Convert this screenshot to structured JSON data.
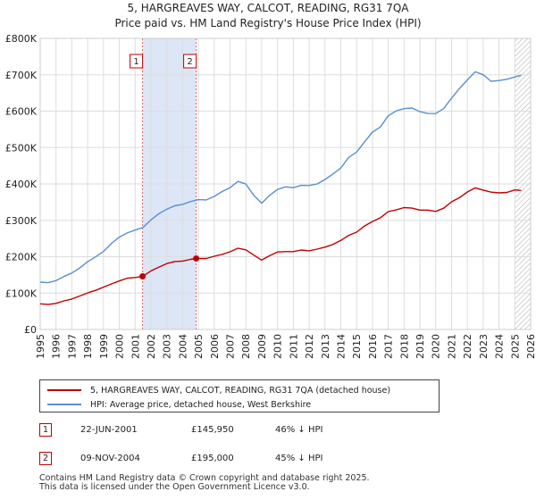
{
  "header": {
    "title_line1": "5, HARGREAVES WAY, CALCOT, READING, RG31 7QA",
    "title_line2": "Price paid vs. HM Land Registry's House Price Index (HPI)"
  },
  "legend": {
    "property_label": "5, HARGREAVES WAY, CALCOT, READING, RG31 7QA (detached house)",
    "hpi_label": "HPI: Average price, detached house, West Berkshire"
  },
  "sales": [
    {
      "num": "1",
      "date": "22-JUN-2001",
      "price": "£145,950",
      "hpi_delta": "46% ↓ HPI"
    },
    {
      "num": "2",
      "date": "09-NOV-2004",
      "price": "£195,000",
      "hpi_delta": "45% ↓ HPI"
    }
  ],
  "footer": {
    "line1": "Contains HM Land Registry data © Crown copyright and database right 2025.",
    "line2": "This data is licensed under the Open Government Licence v3.0."
  },
  "colors": {
    "property": "#c00000",
    "hpi": "#5b8fd0",
    "shade": "#dde6f7",
    "grid": "#dddddd"
  },
  "chart_data": {
    "type": "line",
    "title": "Price paid vs. HM Land Registry's House Price Index (HPI)",
    "xlabel": "",
    "ylabel": "",
    "xlim": [
      1995,
      2026
    ],
    "ylim": [
      0,
      800000
    ],
    "y_ticks": [
      0,
      100000,
      200000,
      300000,
      400000,
      500000,
      600000,
      700000,
      800000
    ],
    "y_tick_labels": [
      "£0",
      "£100K",
      "£200K",
      "£300K",
      "£400K",
      "£500K",
      "£600K",
      "£700K",
      "£800K"
    ],
    "x_ticks": [
      1995,
      1996,
      1997,
      1998,
      1999,
      2000,
      2001,
      2002,
      2003,
      2004,
      2005,
      2006,
      2007,
      2008,
      2009,
      2010,
      2011,
      2012,
      2013,
      2014,
      2015,
      2016,
      2017,
      2018,
      2019,
      2020,
      2021,
      2022,
      2023,
      2024,
      2025,
      2026
    ],
    "shaded_region": [
      2001.47,
      2004.86
    ],
    "hatched_from": 2025.0,
    "grid": true,
    "series": [
      {
        "name": "HPI: Average price, detached house, West Berkshire",
        "x": [
          1995.0,
          1995.5,
          1996.0,
          1996.5,
          1997.0,
          1997.5,
          1998.0,
          1998.5,
          1999.0,
          1999.5,
          2000.0,
          2000.5,
          2001.0,
          2001.5,
          2002.0,
          2002.5,
          2003.0,
          2003.5,
          2004.0,
          2004.5,
          2005.0,
          2005.5,
          2006.0,
          2006.5,
          2007.0,
          2007.5,
          2008.0,
          2008.5,
          2009.0,
          2009.5,
          2010.0,
          2010.5,
          2011.0,
          2011.5,
          2012.0,
          2012.5,
          2013.0,
          2013.5,
          2014.0,
          2014.5,
          2015.0,
          2015.5,
          2016.0,
          2016.5,
          2017.0,
          2017.5,
          2018.0,
          2018.5,
          2019.0,
          2019.5,
          2020.0,
          2020.5,
          2021.0,
          2021.5,
          2022.0,
          2022.5,
          2023.0,
          2023.5,
          2024.0,
          2024.5,
          2025.0,
          2025.4
        ],
        "values": [
          130000,
          128000,
          135000,
          145000,
          155000,
          170000,
          185000,
          200000,
          215000,
          235000,
          255000,
          265000,
          272000,
          282000,
          300000,
          318000,
          332000,
          338000,
          345000,
          352000,
          355000,
          358000,
          365000,
          378000,
          392000,
          405000,
          400000,
          370000,
          345000,
          370000,
          385000,
          390000,
          392000,
          395000,
          395000,
          402000,
          410000,
          428000,
          445000,
          470000,
          490000,
          515000,
          540000,
          560000,
          585000,
          600000,
          610000,
          605000,
          600000,
          595000,
          590000,
          610000,
          635000,
          660000,
          690000,
          705000,
          700000,
          685000,
          680000,
          690000,
          695000,
          695000
        ]
      },
      {
        "name": "5, HARGREAVES WAY, CALCOT, READING, RG31 7QA (detached house)",
        "x": [
          1995.0,
          1995.5,
          1996.0,
          1996.5,
          1997.0,
          1997.5,
          1998.0,
          1998.5,
          1999.0,
          1999.5,
          2000.0,
          2000.5,
          2001.0,
          2001.47,
          2002.0,
          2002.5,
          2003.0,
          2003.5,
          2004.0,
          2004.5,
          2004.86,
          2005.5,
          2006.0,
          2006.5,
          2007.0,
          2007.5,
          2008.0,
          2008.5,
          2009.0,
          2009.5,
          2010.0,
          2010.5,
          2011.0,
          2011.5,
          2012.0,
          2012.5,
          2013.0,
          2013.5,
          2014.0,
          2014.5,
          2015.0,
          2015.5,
          2016.0,
          2016.5,
          2017.0,
          2017.5,
          2018.0,
          2018.5,
          2019.0,
          2019.5,
          2020.0,
          2020.5,
          2021.0,
          2021.5,
          2022.0,
          2022.5,
          2023.0,
          2023.5,
          2024.0,
          2024.5,
          2025.0,
          2025.4
        ],
        "values": [
          70000,
          69000,
          72000,
          78000,
          84000,
          92000,
          100000,
          108000,
          116000,
          125000,
          134000,
          140000,
          143000,
          145950,
          160000,
          172000,
          181000,
          186000,
          189000,
          192000,
          195000,
          196000,
          200000,
          207000,
          214000,
          222000,
          220000,
          204000,
          190000,
          204000,
          212000,
          214000,
          215000,
          217000,
          217000,
          221000,
          225000,
          235000,
          244000,
          258000,
          269000,
          283000,
          297000,
          308000,
          322000,
          330000,
          335000,
          332000,
          330000,
          327000,
          324000,
          335000,
          349000,
          363000,
          379000,
          387000,
          385000,
          377000,
          374000,
          379000,
          382000,
          382000
        ]
      }
    ],
    "sales": [
      {
        "label": "1",
        "x": 2001.47,
        "y": 145950
      },
      {
        "label": "2",
        "x": 2004.86,
        "y": 195000
      }
    ]
  }
}
